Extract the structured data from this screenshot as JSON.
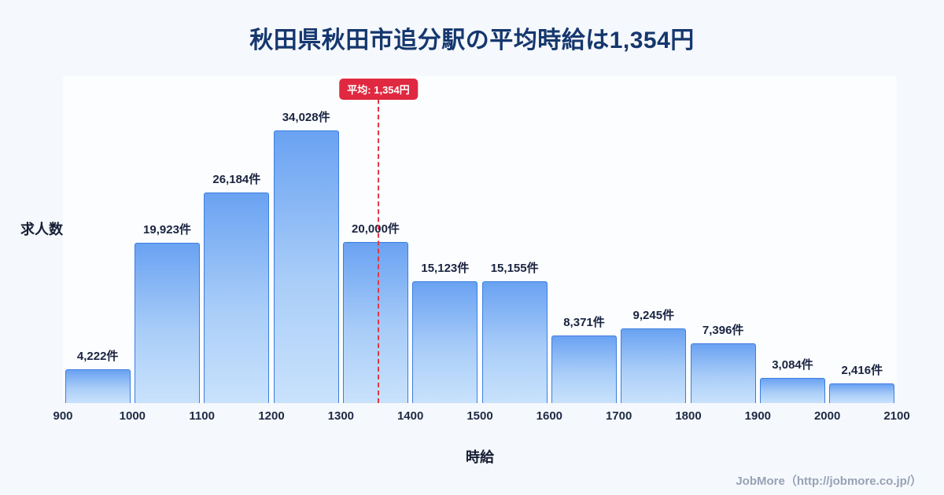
{
  "title": "秋田県秋田市追分駅の平均時給は1,354円",
  "chart_data": {
    "type": "bar",
    "title": "秋田県秋田市追分駅の平均時給は1,354円",
    "xlabel": "時給",
    "ylabel": "求人数",
    "bin_edges": [
      900,
      1000,
      1100,
      1200,
      1300,
      1400,
      1500,
      1600,
      1700,
      1800,
      1900,
      2000,
      2100
    ],
    "values": [
      4222,
      19923,
      26184,
      34028,
      20000,
      15123,
      15155,
      8371,
      9245,
      7396,
      3084,
      2416
    ],
    "value_labels": [
      "4,222件",
      "19,923件",
      "26,184件",
      "34,028件",
      "20,000件",
      "15,123件",
      "15,155件",
      "8,371件",
      "9,245件",
      "7,396件",
      "3,084件",
      "2,416件"
    ],
    "mean": {
      "value": 1354,
      "label": "平均: 1,354円"
    },
    "ylim": [
      0,
      36000
    ],
    "grid": false,
    "legend": "none",
    "colors": {
      "bar_gradient_top": "#6aa2f2",
      "bar_gradient_bottom": "#c9e2fc",
      "bar_border": "#3b7de0",
      "mean_line": "#e23744",
      "mean_badge_bg": "#e02840",
      "title_text": "#15376e",
      "background": "#f5f8fc"
    }
  },
  "footer": {
    "text": "JobMore（http://jobmore.co.jp/）"
  }
}
